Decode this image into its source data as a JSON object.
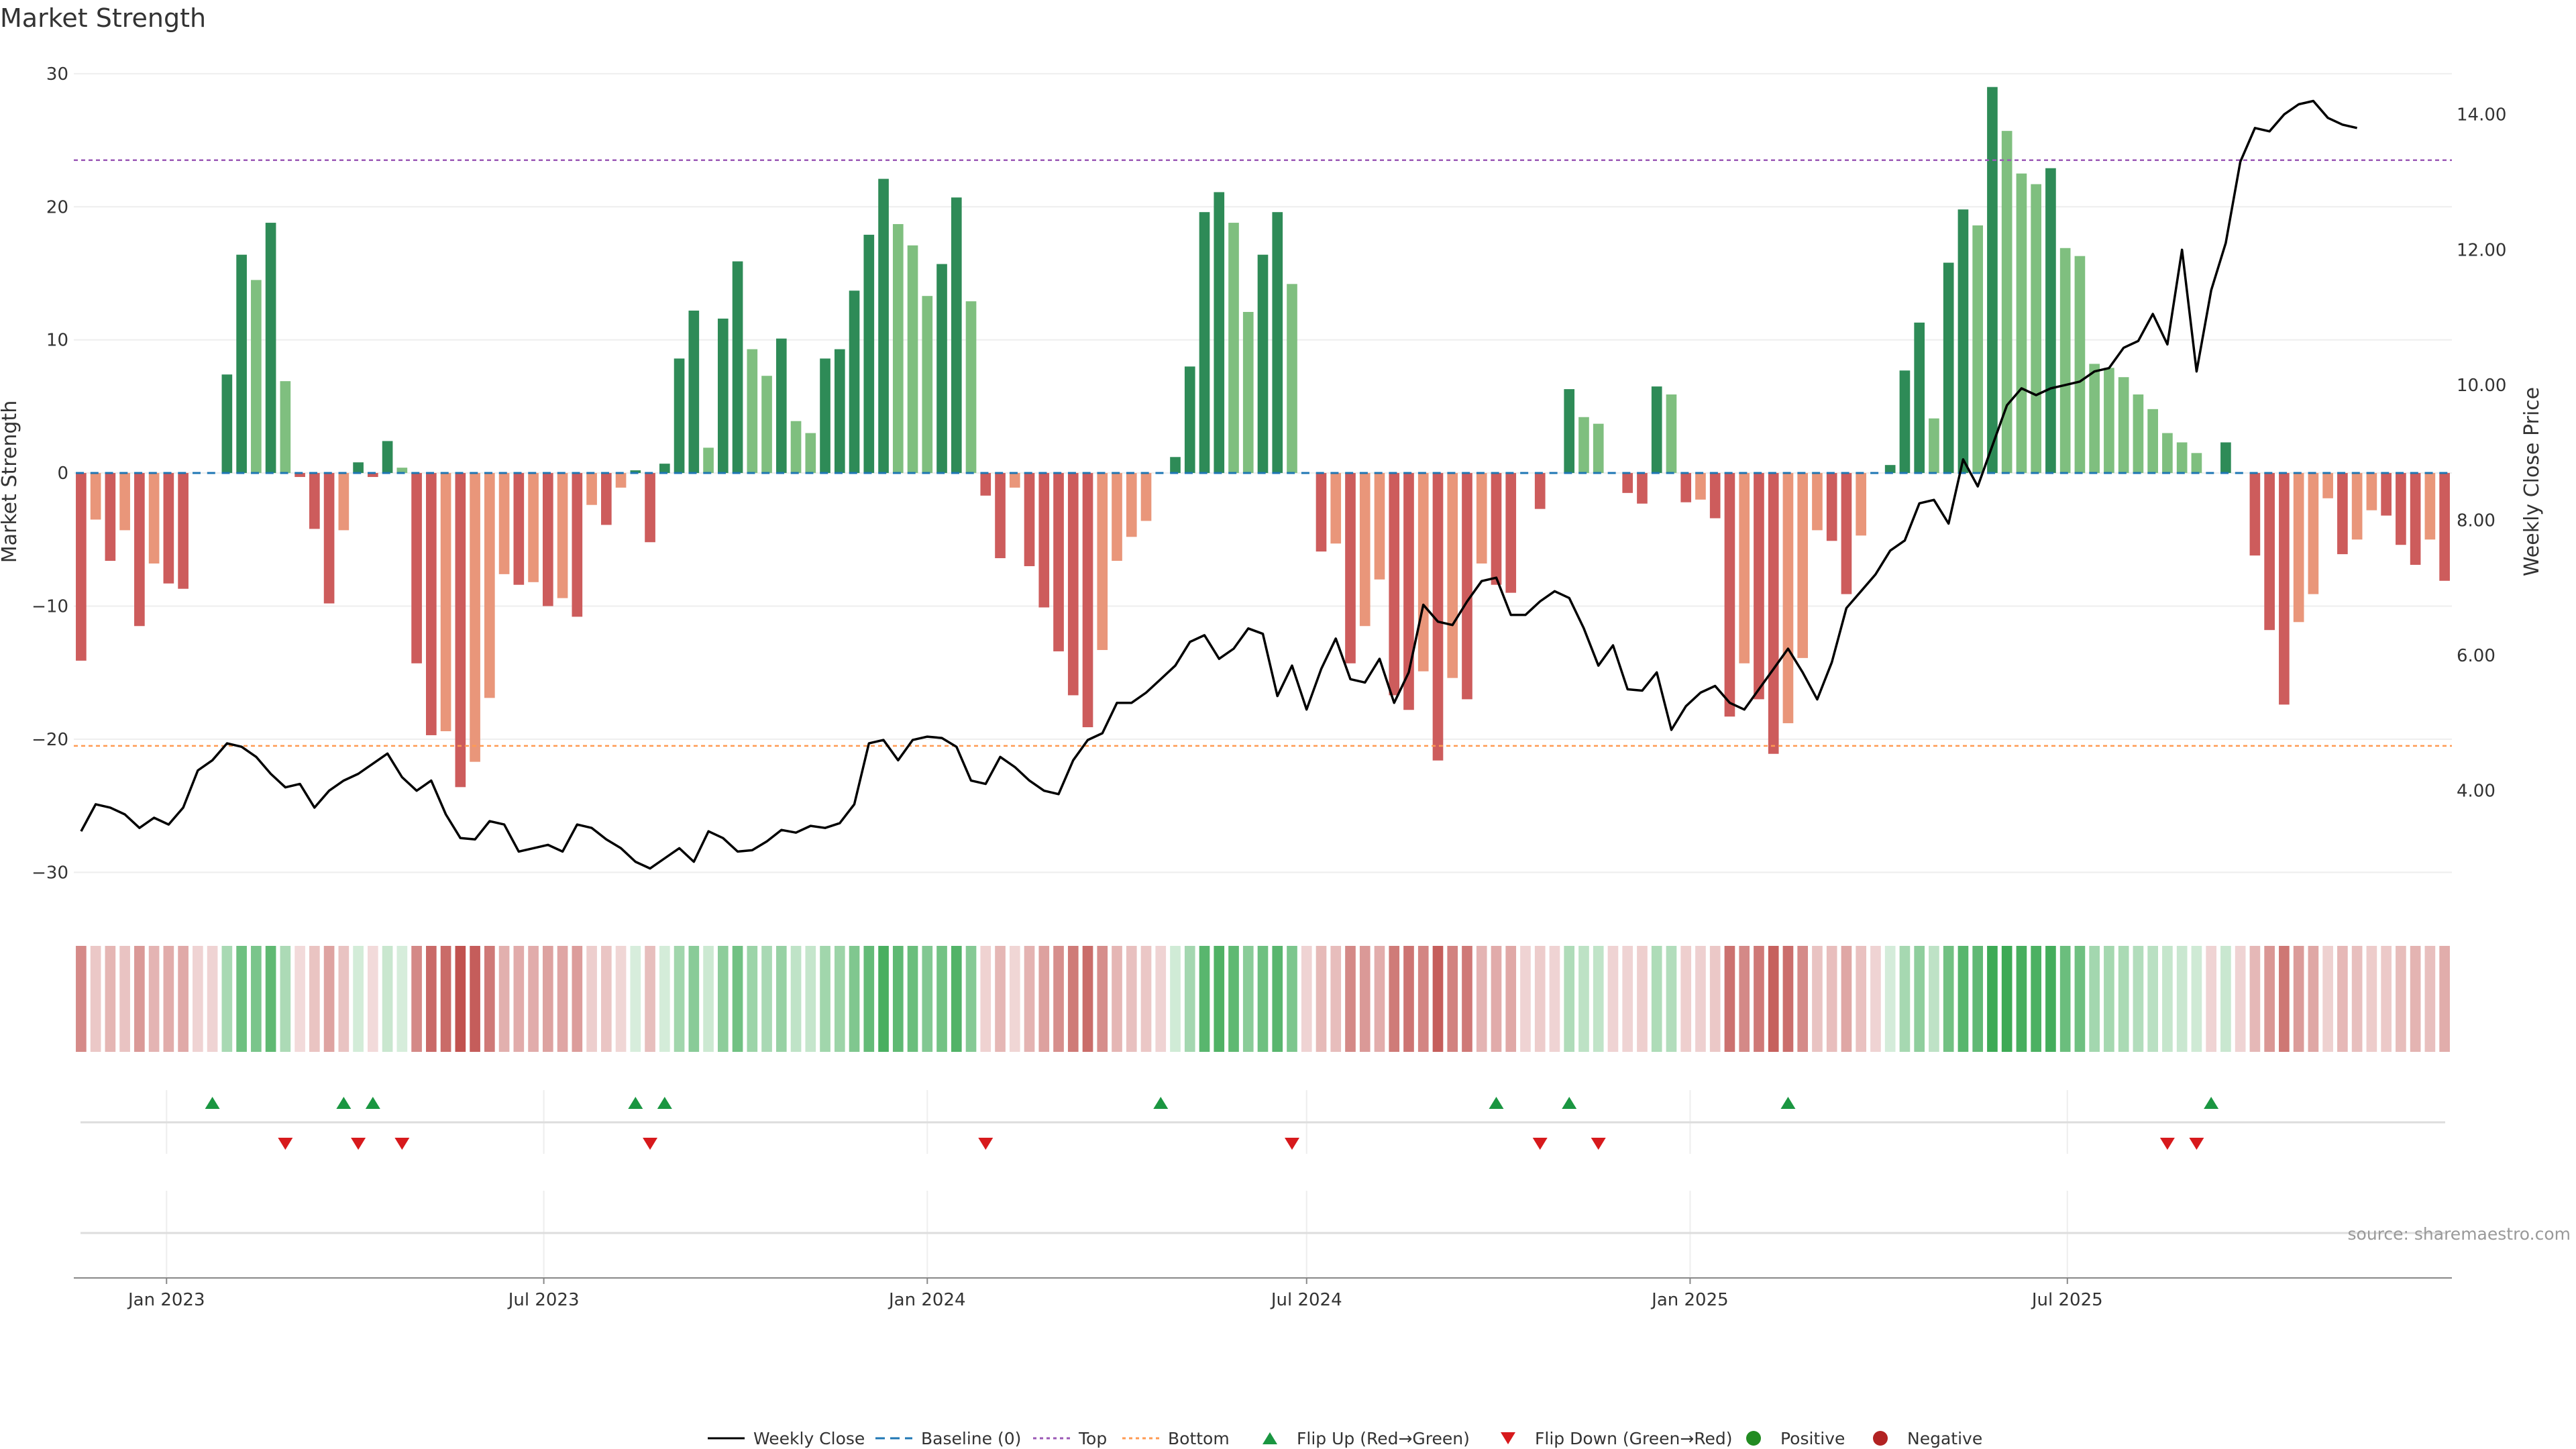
{
  "title": "Market Strength",
  "source": "source: sharemaestro.com",
  "colors": {
    "pos_dark": "#2e8b57",
    "pos_light": "#7fbf7f",
    "neg_dark": "#cd5c5c",
    "neg_light": "#e9967a",
    "close": "#000000",
    "baseline": "#1f77b4",
    "top": "#9b59b6",
    "bottom": "#ff9a52",
    "flip_up": "#1a9641",
    "flip_down": "#d7191c",
    "positive": "#228b22",
    "negative": "#b22222"
  },
  "chart_data": {
    "type": "bar",
    "title": "Market Strength",
    "x_start": "2022-11-21",
    "x_interval_days": 7,
    "x_tick_labels": [
      "Jan 2023",
      "Jul 2023",
      "Jan 2024",
      "Jul 2024",
      "Jan 2025",
      "Jul 2025"
    ],
    "x_tick_dates": [
      "2023-01-01",
      "2023-07-01",
      "2024-01-01",
      "2024-07-01",
      "2025-01-01",
      "2025-07-01"
    ],
    "ylabel": "Market Strength",
    "ylim": [
      -32,
      31
    ],
    "yticks": [
      30,
      20,
      10,
      0,
      -10,
      -20,
      -30
    ],
    "y2label": "Weekly Close Price",
    "y2lim": [
      2.4,
      14.8
    ],
    "y2ticks": [
      "14.00",
      "12.00",
      "10.00",
      "8.00",
      "6.00",
      "4.00"
    ],
    "top_level": 23.5,
    "bottom_level": -20.5,
    "strength": [
      -14.1,
      -3.5,
      -6.6,
      -4.3,
      -11.5,
      -6.8,
      -8.3,
      -8.7,
      0,
      0,
      7.4,
      16.4,
      14.5,
      18.8,
      6.9,
      -0.3,
      -4.2,
      -9.8,
      -4.3,
      0.8,
      -0.3,
      2.4,
      0.4,
      -14.3,
      -19.7,
      -19.4,
      -23.6,
      -21.7,
      -16.9,
      -7.6,
      -8.4,
      -8.2,
      -10.0,
      -9.4,
      -10.8,
      -2.4,
      -3.9,
      -1.1,
      0.2,
      -5.2,
      0.7,
      8.6,
      12.2,
      1.9,
      11.6,
      15.9,
      9.3,
      7.3,
      10.1,
      3.9,
      3.0,
      8.6,
      9.3,
      13.7,
      17.9,
      22.1,
      18.7,
      17.1,
      13.3,
      15.7,
      20.7,
      12.9,
      -1.7,
      -6.4,
      -1.1,
      -7.0,
      -10.1,
      -13.4,
      -16.7,
      -19.1,
      -13.3,
      -6.6,
      -4.8,
      -3.6,
      0,
      1.2,
      8.0,
      19.6,
      21.1,
      18.8,
      12.1,
      16.4,
      19.6,
      14.2,
      0,
      -5.9,
      -5.3,
      -14.3,
      -11.5,
      -8.0,
      -16.7,
      -17.8,
      -14.9,
      -21.6,
      -15.4,
      -17.0,
      -6.8,
      -8.4,
      -9.0,
      0,
      -2.7,
      0,
      6.3,
      4.2,
      3.7,
      0,
      -1.5,
      -2.3,
      6.5,
      5.9,
      -2.2,
      -2.0,
      -3.4,
      -18.3,
      -14.3,
      -17.0,
      -21.1,
      -18.8,
      -13.9,
      -4.3,
      -5.1,
      -9.1,
      -4.7,
      0,
      0.6,
      7.7,
      11.3,
      4.1,
      15.8,
      19.8,
      18.6,
      29.0,
      25.7,
      22.5,
      21.7,
      22.9,
      16.9,
      16.3,
      8.2,
      7.9,
      7.2,
      5.9,
      4.8,
      3.0,
      2.3,
      1.5,
      0,
      2.3,
      0,
      -6.2,
      -11.8,
      -17.4,
      -11.2,
      -9.1,
      -1.9,
      -6.1,
      -5.0,
      -2.8,
      -3.2,
      -5.4,
      -6.9,
      -5.0,
      -8.1
    ],
    "close": [
      3.4,
      3.8,
      3.75,
      3.65,
      3.45,
      3.6,
      3.5,
      3.75,
      4.3,
      4.45,
      4.7,
      4.65,
      4.5,
      4.25,
      4.05,
      4.1,
      3.75,
      4.0,
      4.15,
      4.25,
      4.4,
      4.55,
      4.2,
      4.0,
      4.15,
      3.65,
      3.3,
      3.28,
      3.55,
      3.5,
      3.1,
      3.15,
      3.2,
      3.1,
      3.5,
      3.45,
      3.28,
      3.15,
      2.95,
      2.85,
      3.0,
      3.15,
      2.95,
      3.4,
      3.3,
      3.1,
      3.12,
      3.25,
      3.42,
      3.38,
      3.48,
      3.45,
      3.52,
      3.8,
      4.7,
      4.75,
      4.45,
      4.75,
      4.8,
      4.78,
      4.65,
      4.15,
      4.1,
      4.5,
      4.35,
      4.15,
      4.0,
      3.95,
      4.45,
      4.75,
      4.85,
      5.3,
      5.3,
      5.45,
      5.65,
      5.85,
      6.2,
      6.3,
      5.95,
      6.1,
      6.4,
      6.32,
      5.4,
      5.85,
      5.2,
      5.8,
      6.25,
      5.65,
      5.6,
      5.95,
      5.3,
      5.75,
      6.75,
      6.5,
      6.45,
      6.8,
      7.1,
      7.15,
      6.6,
      6.6,
      6.8,
      6.95,
      6.85,
      6.4,
      5.85,
      6.15,
      5.5,
      5.48,
      5.75,
      4.9,
      5.25,
      5.45,
      5.55,
      5.3,
      5.2,
      5.5,
      5.8,
      6.1,
      5.75,
      5.35,
      5.9,
      6.7,
      6.95,
      7.2,
      7.55,
      7.7,
      8.25,
      8.3,
      7.95,
      8.9,
      8.5,
      9.1,
      9.7,
      9.95,
      9.85,
      9.95,
      10.0,
      10.05,
      10.2,
      10.25,
      10.55,
      10.65,
      11.05,
      10.6,
      12.0,
      10.2,
      11.4,
      12.1,
      13.3,
      13.8,
      13.75,
      14.0,
      14.15,
      14.2,
      13.95,
      13.85,
      13.8
    ],
    "flip_up_weeks": [
      9,
      18,
      20,
      38,
      40,
      74,
      97,
      102,
      117,
      146
    ],
    "flip_down_weeks": [
      14,
      19,
      22,
      39,
      62,
      83,
      100,
      104,
      143,
      145
    ],
    "series": [
      {
        "name": "Weekly Close"
      },
      {
        "name": "Baseline (0)"
      },
      {
        "name": "Top"
      },
      {
        "name": "Bottom"
      },
      {
        "name": "Flip Up (Red→Green)"
      },
      {
        "name": "Flip Down (Green→Red)"
      },
      {
        "name": "Positive"
      },
      {
        "name": "Negative"
      }
    ]
  }
}
